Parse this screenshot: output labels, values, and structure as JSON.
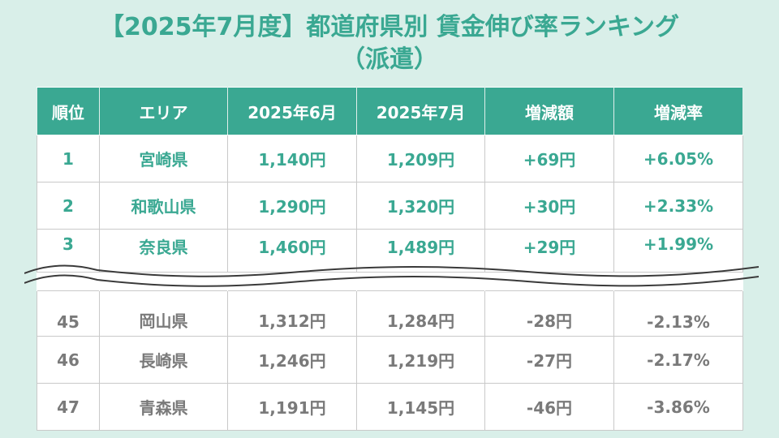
{
  "title": {
    "line1": "【2025年7月度】都道府県別 賃金伸び率ランキング",
    "line2": "（派遣）"
  },
  "table": {
    "headers": [
      "順位",
      "エリア",
      "2025年6月",
      "2025年7月",
      "増減額",
      "増減率"
    ],
    "top_rows": [
      [
        "1",
        "宮崎県",
        "1,140円",
        "1,209円",
        "+69円",
        "+6.05%"
      ],
      [
        "2",
        "和歌山県",
        "1,290円",
        "1,320円",
        "+30円",
        "+2.33%"
      ],
      [
        "3",
        "奈良県",
        "1,460円",
        "1,489円",
        "+29円",
        "+1.99%"
      ]
    ],
    "bottom_rows": [
      [
        "45",
        "岡山県",
        "1,312円",
        "1,284円",
        "-28円",
        "-2.13%"
      ],
      [
        "46",
        "長崎県",
        "1,246円",
        "1,219円",
        "-27円",
        "-2.17%"
      ],
      [
        "47",
        "青森県",
        "1,191円",
        "1,145円",
        "-46円",
        "-3.86%"
      ]
    ]
  },
  "colors": {
    "background": "#d9efe9",
    "accent": "#3aa892",
    "text_top": "#3aa892",
    "text_bottom": "#7a7a7a"
  }
}
